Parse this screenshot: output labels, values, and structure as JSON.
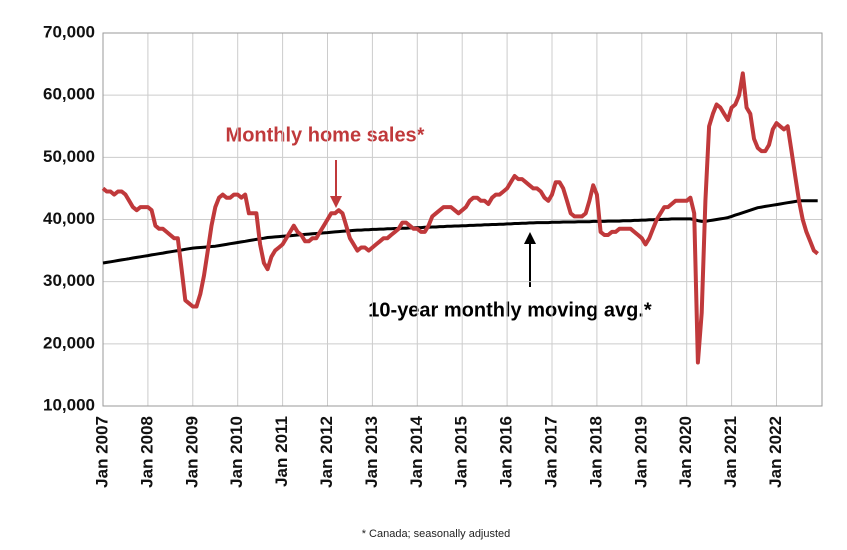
{
  "chart_data": {
    "type": "line",
    "annotations": [
      "Monthly home sales*",
      "10-year monthly moving avg.*"
    ],
    "footnote": "* Canada; seasonally adjusted",
    "categories": [
      "Jan 2007",
      null,
      null,
      null,
      null,
      null,
      null,
      null,
      null,
      null,
      null,
      null,
      "Jan 2008",
      null,
      null,
      null,
      null,
      null,
      null,
      null,
      null,
      null,
      null,
      null,
      "Jan 2009",
      null,
      null,
      null,
      null,
      null,
      null,
      null,
      null,
      null,
      null,
      null,
      "Jan 2010",
      null,
      null,
      null,
      null,
      null,
      null,
      null,
      null,
      null,
      null,
      null,
      "Jan 2011",
      null,
      null,
      null,
      null,
      null,
      null,
      null,
      null,
      null,
      null,
      null,
      "Jan 2012",
      null,
      null,
      null,
      null,
      null,
      null,
      null,
      null,
      null,
      null,
      null,
      "Jan 2013",
      null,
      null,
      null,
      null,
      null,
      null,
      null,
      null,
      null,
      null,
      null,
      "Jan 2014",
      null,
      null,
      null,
      null,
      null,
      null,
      null,
      null,
      null,
      null,
      null,
      "Jan 2015",
      null,
      null,
      null,
      null,
      null,
      null,
      null,
      null,
      null,
      null,
      null,
      "Jan 2016",
      null,
      null,
      null,
      null,
      null,
      null,
      null,
      null,
      null,
      null,
      null,
      "Jan 2017",
      null,
      null,
      null,
      null,
      null,
      null,
      null,
      null,
      null,
      null,
      null,
      "Jan 2018",
      null,
      null,
      null,
      null,
      null,
      null,
      null,
      null,
      null,
      null,
      null,
      "Jan 2019",
      null,
      null,
      null,
      null,
      null,
      null,
      null,
      null,
      null,
      null,
      null,
      "Jan 2020",
      null,
      null,
      null,
      null,
      null,
      null,
      null,
      null,
      null,
      null,
      null,
      "Jan 2021",
      null,
      null,
      null,
      null,
      null,
      null,
      null,
      null,
      null,
      null,
      null,
      "Jan 2022",
      null,
      null,
      null,
      null,
      null,
      null,
      null,
      null,
      null,
      null,
      null
    ],
    "series": [
      {
        "name": "Monthly home sales*",
        "color": "#c0393b",
        "values": [
          45000,
          44500,
          44500,
          44000,
          44500,
          44500,
          44000,
          43000,
          42000,
          41500,
          42000,
          42000,
          42000,
          41500,
          39000,
          38500,
          38500,
          38000,
          37500,
          37000,
          37000,
          32000,
          27000,
          26500,
          26000,
          26000,
          28000,
          31000,
          35000,
          39000,
          42000,
          43500,
          44000,
          43500,
          43500,
          44000,
          44000,
          43500,
          44000,
          41000,
          41000,
          41000,
          36000,
          33000,
          32000,
          34000,
          35000,
          35500,
          36000,
          37000,
          38000,
          39000,
          38000,
          37500,
          36500,
          36500,
          37000,
          37000,
          38000,
          39000,
          40000,
          41000,
          41000,
          41500,
          41000,
          39000,
          37000,
          36000,
          35000,
          35500,
          35500,
          35000,
          35500,
          36000,
          36500,
          37000,
          37000,
          37500,
          38000,
          38500,
          39500,
          39500,
          39000,
          38500,
          38500,
          38000,
          38000,
          39000,
          40500,
          41000,
          41500,
          42000,
          42000,
          42000,
          41500,
          41000,
          41500,
          42000,
          43000,
          43500,
          43500,
          43000,
          43000,
          42500,
          43500,
          44000,
          44000,
          44500,
          45000,
          46000,
          47000,
          46500,
          46500,
          46000,
          45500,
          45000,
          45000,
          44500,
          43500,
          43000,
          44000,
          46000,
          46000,
          45000,
          43000,
          41000,
          40500,
          40500,
          40500,
          41000,
          43000,
          45500,
          44000,
          38000,
          37500,
          37500,
          38000,
          38000,
          38500,
          38500,
          38500,
          38500,
          38000,
          37500,
          37000,
          36000,
          37000,
          38500,
          40000,
          41000,
          42000,
          42000,
          42500,
          43000,
          43000,
          43000,
          43000,
          43500,
          41000,
          17000,
          25000,
          43000,
          55000,
          57000,
          58500,
          58000,
          57000,
          56000,
          58000,
          58500,
          60000,
          63500,
          58000,
          57000,
          53000,
          51500,
          51000,
          51000,
          52000,
          54500,
          55500,
          55000,
          54500,
          55000,
          51000,
          47000,
          43000,
          40000,
          38000,
          36500,
          35000,
          34500
        ]
      },
      {
        "name": "10-year monthly moving avg.*",
        "color": "#000000",
        "values": [
          33000,
          33100,
          33200,
          33300,
          33400,
          33500,
          33600,
          33700,
          33800,
          33900,
          34000,
          34100,
          34200,
          34300,
          34400,
          34500,
          34600,
          34700,
          34800,
          34900,
          35000,
          35100,
          35200,
          35300,
          35400,
          35450,
          35500,
          35550,
          35600,
          35650,
          35700,
          35800,
          35900,
          36000,
          36100,
          36200,
          36300,
          36400,
          36500,
          36600,
          36700,
          36800,
          36900,
          37000,
          37100,
          37150,
          37200,
          37250,
          37300,
          37350,
          37400,
          37450,
          37500,
          37550,
          37600,
          37650,
          37700,
          37750,
          37800,
          37850,
          37900,
          37950,
          38000,
          38050,
          38100,
          38150,
          38200,
          38250,
          38300,
          38300,
          38350,
          38350,
          38400,
          38400,
          38450,
          38450,
          38500,
          38500,
          38550,
          38550,
          38600,
          38600,
          38650,
          38650,
          38700,
          38700,
          38750,
          38750,
          38800,
          38800,
          38850,
          38850,
          38900,
          38900,
          38950,
          38950,
          39000,
          39000,
          39050,
          39050,
          39100,
          39100,
          39150,
          39150,
          39200,
          39200,
          39250,
          39250,
          39300,
          39300,
          39350,
          39350,
          39400,
          39400,
          39450,
          39450,
          39500,
          39500,
          39500,
          39500,
          39550,
          39550,
          39550,
          39600,
          39600,
          39600,
          39600,
          39650,
          39650,
          39650,
          39650,
          39700,
          39700,
          39700,
          39700,
          39750,
          39750,
          39750,
          39750,
          39800,
          39800,
          39800,
          39850,
          39850,
          39900,
          39900,
          39950,
          39950,
          40000,
          40000,
          40050,
          40050,
          40100,
          40100,
          40100,
          40100,
          40100,
          40100,
          40000,
          39800,
          39700,
          39700,
          39800,
          39900,
          40000,
          40100,
          40200,
          40300,
          40500,
          40700,
          40900,
          41100,
          41300,
          41500,
          41700,
          41900,
          42000,
          42100,
          42200,
          42300,
          42400,
          42500,
          42600,
          42700,
          42800,
          42900,
          43000,
          43000,
          43000,
          43000,
          43000,
          43000
        ]
      }
    ],
    "ylim": [
      10000,
      70000
    ],
    "yticks": [
      {
        "value": 10000,
        "label": "10,000"
      },
      {
        "value": 20000,
        "label": "20,000"
      },
      {
        "value": 30000,
        "label": "30,000"
      },
      {
        "value": 40000,
        "label": "40,000"
      },
      {
        "value": 50000,
        "label": "50,000"
      },
      {
        "value": 60000,
        "label": "60,000"
      },
      {
        "value": 70000,
        "label": "70,000"
      }
    ],
    "grid": true
  }
}
